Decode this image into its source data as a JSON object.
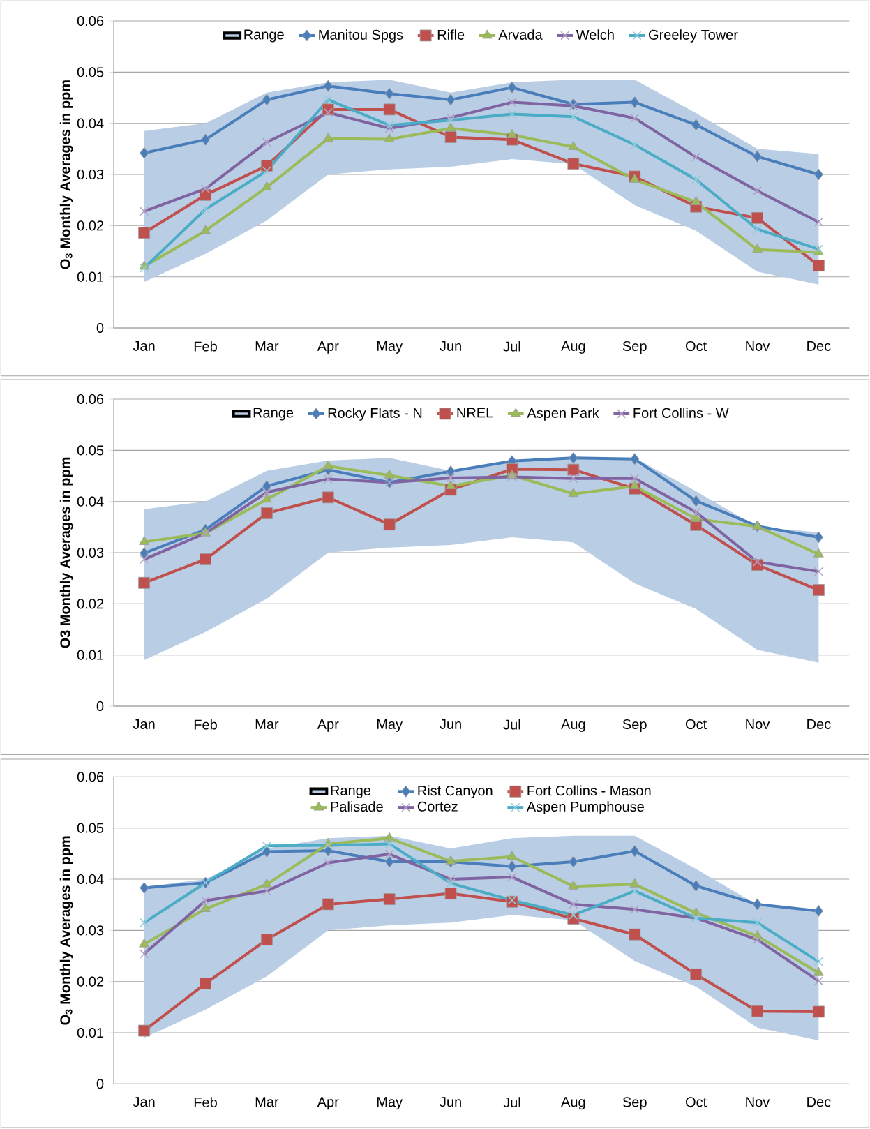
{
  "chart_data": [
    {
      "type": "line",
      "ylabel": "O$_{3}$ Monthly Averages in ppm",
      "categories": [
        "Jan",
        "Feb",
        "Mar",
        "Apr",
        "May",
        "Jun",
        "Jul",
        "Aug",
        "Sep",
        "Oct",
        "Nov",
        "Dec"
      ],
      "ylim": [
        0,
        0.06
      ],
      "yticks": [
        0,
        0.01,
        0.02,
        0.03,
        0.04,
        0.05,
        0.06
      ],
      "grid": "y",
      "legend": "top",
      "series": [
        {
          "name": "Range",
          "type": "line",
          "color": "#b9cde5",
          "values": [
            null,
            null,
            null,
            null,
            null,
            null,
            null,
            null,
            null,
            null,
            null,
            null
          ],
          "upper": [
            0.0385,
            0.04,
            0.046,
            0.048,
            0.0485,
            0.046,
            0.048,
            0.0485,
            0.0485,
            0.042,
            0.035,
            0.034
          ],
          "lower": [
            0.009,
            0.0145,
            0.021,
            0.03,
            0.031,
            0.0315,
            0.033,
            0.032,
            0.024,
            0.019,
            0.011,
            0.0085
          ]
        },
        {
          "name": "Manitou Spgs",
          "color": "#4a7ebb",
          "marker": "diamond",
          "values": [
            0.0342,
            0.0368,
            0.0446,
            0.0473,
            0.0458,
            0.0446,
            0.047,
            0.0437,
            0.0441,
            0.0397,
            0.0335,
            0.03
          ]
        },
        {
          "name": "Rifle",
          "color": "#c0504d",
          "marker": "square",
          "values": [
            0.0186,
            0.026,
            0.0317,
            0.0427,
            0.0427,
            0.0373,
            0.0368,
            0.0321,
            0.0296,
            0.0237,
            0.0215,
            0.0122
          ]
        },
        {
          "name": "Arvada",
          "color": "#9bbb59",
          "marker": "triangle",
          "values": [
            0.012,
            0.019,
            0.0275,
            0.037,
            0.0369,
            0.039,
            0.0377,
            0.0354,
            0.029,
            0.0246,
            0.0153,
            0.0148
          ]
        },
        {
          "name": "Welch",
          "color": "#8064a2",
          "marker": "cross",
          "values": [
            0.0228,
            0.0272,
            0.0363,
            0.0421,
            0.039,
            0.0411,
            0.0441,
            0.0434,
            0.041,
            0.0334,
            0.0268,
            0.0207
          ]
        },
        {
          "name": "Greeley Tower",
          "color": "#4bacc6",
          "marker": "cross",
          "values": [
            0.0117,
            0.0232,
            0.0307,
            0.0446,
            0.0396,
            0.0406,
            0.0418,
            0.0413,
            0.0358,
            0.029,
            0.0193,
            0.0154
          ]
        }
      ]
    },
    {
      "type": "line",
      "ylabel": "O3 Monthly Averages in ppm",
      "categories": [
        "Jan",
        "Feb",
        "Mar",
        "Apr",
        "May",
        "Jun",
        "Jul",
        "Aug",
        "Sep",
        "Oct",
        "Nov",
        "Dec"
      ],
      "ylim": [
        0,
        0.06
      ],
      "yticks": [
        0,
        0.01,
        0.02,
        0.03,
        0.04,
        0.05,
        0.06
      ],
      "grid": "y",
      "legend": "top",
      "series": [
        {
          "name": "Range",
          "type": "line",
          "color": "#b9cde5",
          "values": [
            null,
            null,
            null,
            null,
            null,
            null,
            null,
            null,
            null,
            null,
            null,
            null
          ],
          "upper": [
            0.0385,
            0.04,
            0.046,
            0.048,
            0.0485,
            0.046,
            0.048,
            0.0485,
            0.0485,
            0.042,
            0.035,
            0.034
          ],
          "lower": [
            0.009,
            0.0145,
            0.021,
            0.03,
            0.031,
            0.0315,
            0.033,
            0.032,
            0.024,
            0.019,
            0.011,
            0.0085
          ]
        },
        {
          "name": "Rocky Flats - N",
          "color": "#4a7ebb",
          "marker": "diamond",
          "values": [
            0.0299,
            0.0345,
            0.043,
            0.0462,
            0.0437,
            0.0459,
            0.0479,
            0.0485,
            0.0483,
            0.0401,
            0.0352,
            0.033
          ]
        },
        {
          "name": "NREL",
          "color": "#c0504d",
          "marker": "square",
          "values": [
            0.0241,
            0.0287,
            0.0377,
            0.0408,
            0.0355,
            0.0423,
            0.0463,
            0.0462,
            0.0425,
            0.0354,
            0.0276,
            0.0227
          ]
        },
        {
          "name": "Aspen Park",
          "color": "#9bbb59",
          "marker": "triangle",
          "values": [
            0.0321,
            0.0338,
            0.0404,
            0.0469,
            0.0451,
            0.043,
            0.0451,
            0.0415,
            0.043,
            0.0366,
            0.0351,
            0.0297
          ]
        },
        {
          "name": "Fort Collins - W",
          "color": "#8064a2",
          "marker": "cross",
          "values": [
            0.0287,
            0.0338,
            0.0418,
            0.0444,
            0.0437,
            0.0446,
            0.0448,
            0.0445,
            0.0445,
            0.0379,
            0.0282,
            0.0263
          ]
        }
      ]
    },
    {
      "type": "line",
      "ylabel": "O$_{3}$ Monthly Averages in ppm",
      "categories": [
        "Jan",
        "Feb",
        "Mar",
        "Apr",
        "May",
        "Jun",
        "Jul",
        "Aug",
        "Sep",
        "Oct",
        "Nov",
        "Dec"
      ],
      "ylim": [
        0,
        0.06
      ],
      "yticks": [
        0,
        0.01,
        0.02,
        0.03,
        0.04,
        0.05,
        0.06
      ],
      "grid": "y",
      "legend": "top",
      "series": [
        {
          "name": "Range",
          "type": "line",
          "color": "#b9cde5",
          "values": [
            null,
            null,
            null,
            null,
            null,
            null,
            null,
            null,
            null,
            null,
            null,
            null
          ],
          "upper": [
            0.0385,
            0.04,
            0.046,
            0.048,
            0.0485,
            0.046,
            0.048,
            0.0485,
            0.0485,
            0.042,
            0.035,
            0.034
          ],
          "lower": [
            0.009,
            0.0145,
            0.021,
            0.03,
            0.031,
            0.0315,
            0.033,
            0.032,
            0.024,
            0.019,
            0.011,
            0.0085
          ]
        },
        {
          "name": "Rist Canyon",
          "color": "#4a7ebb",
          "marker": "diamond",
          "values": [
            0.0383,
            0.0393,
            0.0454,
            0.0456,
            0.0434,
            0.0434,
            0.0425,
            0.0434,
            0.0455,
            0.0387,
            0.0351,
            0.0338
          ]
        },
        {
          "name": "Fort Collins - Mason",
          "color": "#c0504d",
          "marker": "square",
          "values": [
            0.0104,
            0.0196,
            0.0282,
            0.0351,
            0.0361,
            0.0372,
            0.0356,
            0.0323,
            0.0292,
            0.0214,
            0.0142,
            0.0141
          ]
        },
        {
          "name": "Palisade",
          "color": "#9bbb59",
          "marker": "triangle",
          "values": [
            0.0273,
            0.0342,
            0.039,
            0.0469,
            0.048,
            0.0435,
            0.0444,
            0.0386,
            0.039,
            0.0334,
            0.0289,
            0.0217
          ]
        },
        {
          "name": "Cortez",
          "color": "#8064a2",
          "marker": "cross",
          "values": [
            0.0254,
            0.0358,
            0.0377,
            0.0432,
            0.0449,
            0.04,
            0.0404,
            0.0351,
            0.0341,
            0.0324,
            0.0282,
            0.0201
          ]
        },
        {
          "name": "Aspen Pumphouse",
          "color": "#4bacc6",
          "marker": "cross",
          "values": [
            0.0315,
            0.0393,
            0.0465,
            0.0466,
            0.0469,
            0.0392,
            0.0359,
            0.033,
            0.0377,
            0.0324,
            0.0315,
            0.0239
          ]
        }
      ]
    }
  ]
}
